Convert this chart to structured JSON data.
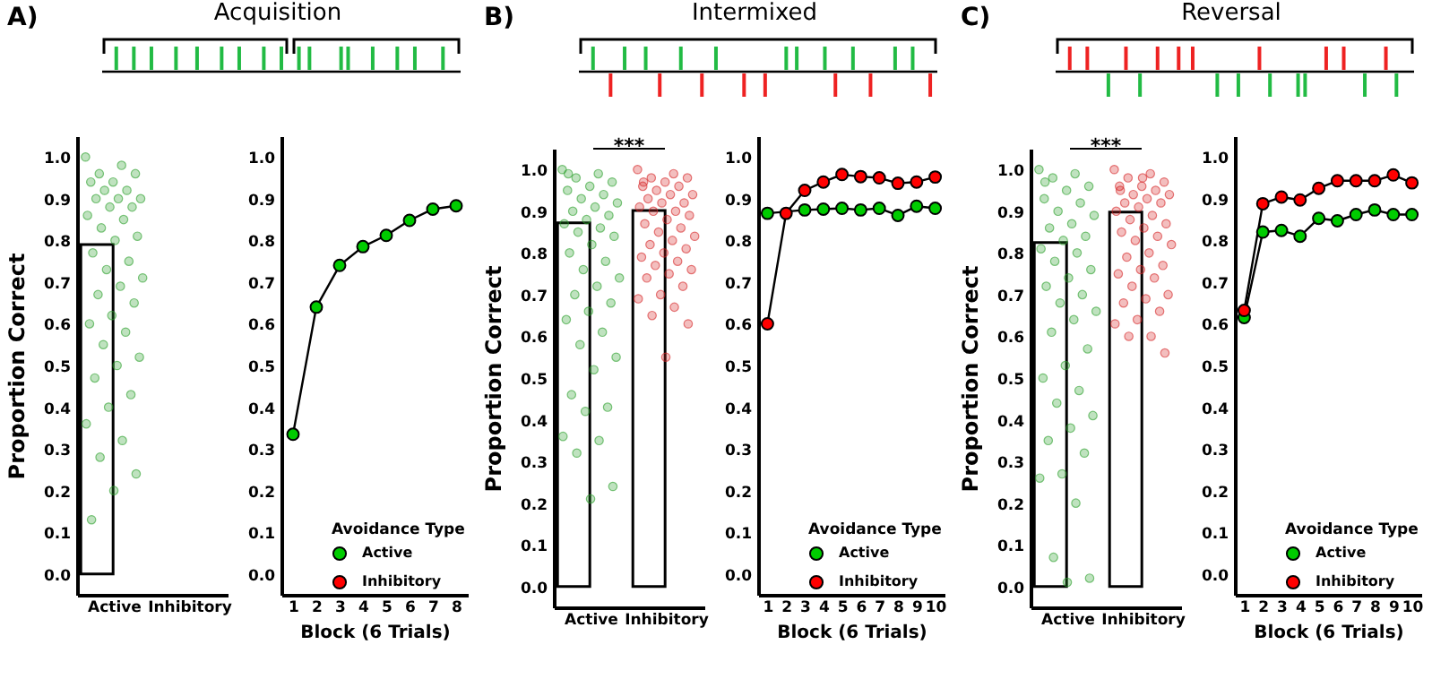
{
  "chart_data": [
    {
      "type": "bar",
      "title": "Acquisition",
      "annotations": [
        "A)"
      ],
      "ylabel": "Proportion Correct",
      "categories": [
        "Active",
        "Inhibitory"
      ],
      "ylim": [
        -0.05,
        1.05
      ],
      "yticks": [
        {
          "value": 0,
          "label": "0.0"
        },
        {
          "value": 0.1,
          "label": "0.1"
        },
        {
          "value": 0.2,
          "label": "0.2"
        },
        {
          "value": 0.3,
          "label": "0.3"
        },
        {
          "value": 0.4,
          "label": "0.4"
        },
        {
          "value": 0.5,
          "label": "0.5"
        },
        {
          "value": 0.6,
          "label": "0.6"
        },
        {
          "value": 0.7,
          "label": "0.7"
        },
        {
          "value": 0.8,
          "label": "0.8"
        },
        {
          "value": 0.9,
          "label": "0.9"
        },
        {
          "value": 1,
          "label": "1.0"
        }
      ],
      "series": [
        {
          "type": "bar",
          "color": "#ffffff",
          "values": [
            0.79,
            null
          ]
        },
        {
          "type": "scatter",
          "color": "#2ca02c",
          "x": [
            "Active",
            "Active",
            "Active",
            "Active",
            "Active",
            "Active",
            "Active",
            "Active",
            "Active",
            "Active",
            "Active",
            "Active",
            "Active",
            "Active",
            "Active",
            "Active",
            "Active",
            "Active",
            "Active",
            "Active",
            "Active",
            "Active",
            "Active",
            "Active",
            "Active",
            "Active",
            "Active",
            "Active",
            "Active",
            "Active",
            "Active",
            "Active",
            "Active",
            "Active",
            "Active",
            "Active",
            "Active",
            "Active",
            "Active",
            "Active"
          ],
          "values": [
            1,
            0.98,
            0.96,
            0.96,
            0.94,
            0.94,
            0.92,
            0.92,
            0.9,
            0.9,
            0.9,
            0.88,
            0.88,
            0.86,
            0.85,
            0.83,
            0.81,
            0.8,
            0.77,
            0.75,
            0.73,
            0.71,
            0.69,
            0.67,
            0.65,
            0.62,
            0.6,
            0.58,
            0.55,
            0.52,
            0.5,
            0.47,
            0.43,
            0.4,
            0.36,
            0.32,
            0.28,
            0.24,
            0.2,
            0.13
          ]
        }
      ]
    },
    {
      "type": "line",
      "xlabel": "Block (6 Trials)",
      "legend_title": "Avoidance Type",
      "legend": "bottom right",
      "marker": "circle",
      "x": [
        1,
        2,
        3,
        4,
        5,
        6,
        7,
        8
      ],
      "xlim": [
        0.5,
        8.5
      ],
      "xticks": [
        1,
        2,
        3,
        4,
        5,
        6,
        7,
        8
      ],
      "ylim": [
        -0.05,
        1.05
      ],
      "yticks": [
        {
          "value": 0,
          "label": "0.0"
        },
        {
          "value": 0.1,
          "label": "0.1"
        },
        {
          "value": 0.2,
          "label": "0.2"
        },
        {
          "value": 0.3,
          "label": "0.3"
        },
        {
          "value": 0.4,
          "label": "0.4"
        },
        {
          "value": 0.5,
          "label": "0.5"
        },
        {
          "value": 0.6,
          "label": "0.6"
        },
        {
          "value": 0.7,
          "label": "0.7"
        },
        {
          "value": 0.8,
          "label": "0.8"
        },
        {
          "value": 0.9,
          "label": "0.9"
        },
        {
          "value": 1,
          "label": "1.0"
        }
      ],
      "series": [
        {
          "name": "Active",
          "color": "#00cc00",
          "values": [
            0.335,
            0.64,
            0.74,
            0.785,
            0.812,
            0.848,
            0.875,
            0.883
          ],
          "errors": [
            0.01,
            0.012,
            0.012,
            0.01,
            0.01,
            0.008,
            0.006,
            0.005
          ]
        },
        {
          "name": "Inhibitory",
          "color": "#ff0000",
          "values": [
            null,
            null,
            null,
            null,
            null,
            null,
            null,
            null
          ]
        }
      ]
    },
    {
      "type": "bar",
      "title": "Intermixed",
      "annotations": [
        "B)",
        "***"
      ],
      "ylabel": "Proportion Correct",
      "categories": [
        "Active",
        "Inhibitory"
      ],
      "ylim": [
        -0.05,
        1.05
      ],
      "yticks": [
        {
          "value": 0,
          "label": "0.0"
        },
        {
          "value": 0.1,
          "label": "0.1"
        },
        {
          "value": 0.2,
          "label": "0.2"
        },
        {
          "value": 0.3,
          "label": "0.3"
        },
        {
          "value": 0.4,
          "label": "0.4"
        },
        {
          "value": 0.5,
          "label": "0.5"
        },
        {
          "value": 0.6,
          "label": "0.6"
        },
        {
          "value": 0.7,
          "label": "0.7"
        },
        {
          "value": 0.8,
          "label": "0.8"
        },
        {
          "value": 0.9,
          "label": "0.9"
        },
        {
          "value": 1,
          "label": "1.0"
        }
      ],
      "series": [
        {
          "type": "bar",
          "color": "#ffffff",
          "values": [
            0.872,
            0.902
          ]
        },
        {
          "type": "scatter",
          "color": "#2ca02c",
          "x": [
            "Active",
            "Active",
            "Active",
            "Active",
            "Active",
            "Active",
            "Active",
            "Active",
            "Active",
            "Active",
            "Active",
            "Active",
            "Active",
            "Active",
            "Active",
            "Active",
            "Active",
            "Active",
            "Active",
            "Active",
            "Active",
            "Active",
            "Active",
            "Active",
            "Active",
            "Active",
            "Active",
            "Active",
            "Active",
            "Active",
            "Active",
            "Active",
            "Active",
            "Active",
            "Active",
            "Active",
            "Active",
            "Active",
            "Active",
            "Active"
          ],
          "values": [
            1,
            0.99,
            0.98,
            0.97,
            0.96,
            0.95,
            0.94,
            0.93,
            0.92,
            0.91,
            0.9,
            0.89,
            0.88,
            0.87,
            0.86,
            0.85,
            0.84,
            0.82,
            0.8,
            0.78,
            0.76,
            0.74,
            0.72,
            0.7,
            0.68,
            0.66,
            0.64,
            0.61,
            0.58,
            0.55,
            0.52,
            0.46,
            0.43,
            0.42,
            0.36,
            0.35,
            0.32,
            0.24,
            0.21,
            0.99
          ]
        },
        {
          "type": "scatter",
          "color": "#d62728",
          "x": [
            "Inhibitory",
            "Inhibitory",
            "Inhibitory",
            "Inhibitory",
            "Inhibitory",
            "Inhibitory",
            "Inhibitory",
            "Inhibitory",
            "Inhibitory",
            "Inhibitory",
            "Inhibitory",
            "Inhibitory",
            "Inhibitory",
            "Inhibitory",
            "Inhibitory",
            "Inhibitory",
            "Inhibitory",
            "Inhibitory",
            "Inhibitory",
            "Inhibitory",
            "Inhibitory",
            "Inhibitory",
            "Inhibitory",
            "Inhibitory",
            "Inhibitory",
            "Inhibitory",
            "Inhibitory",
            "Inhibitory",
            "Inhibitory",
            "Inhibitory",
            "Inhibitory",
            "Inhibitory",
            "Inhibitory",
            "Inhibitory",
            "Inhibitory",
            "Inhibitory",
            "Inhibitory",
            "Inhibitory",
            "Inhibitory",
            "Inhibitory"
          ],
          "values": [
            1,
            0.99,
            0.98,
            0.98,
            0.97,
            0.96,
            0.96,
            0.95,
            0.94,
            0.94,
            0.93,
            0.92,
            0.92,
            0.91,
            0.9,
            0.9,
            0.89,
            0.88,
            0.87,
            0.86,
            0.85,
            0.84,
            0.83,
            0.82,
            0.81,
            0.8,
            0.79,
            0.78,
            0.77,
            0.76,
            0.75,
            0.74,
            0.72,
            0.7,
            0.69,
            0.67,
            0.65,
            0.63,
            0.55,
            0.97
          ]
        }
      ]
    },
    {
      "type": "line",
      "xlabel": "Block (6 Trials)",
      "legend_title": "Avoidance Type",
      "legend": "bottom right",
      "marker": "circle",
      "x": [
        1,
        2,
        3,
        4,
        5,
        6,
        7,
        8,
        9,
        10
      ],
      "xlim": [
        0.5,
        10.5
      ],
      "xticks": [
        1,
        2,
        3,
        4,
        5,
        6,
        7,
        8,
        9,
        10
      ],
      "ylim": [
        -0.05,
        1.05
      ],
      "yticks": [
        {
          "value": 0,
          "label": "0.0"
        },
        {
          "value": 0.1,
          "label": "0.1"
        },
        {
          "value": 0.2,
          "label": "0.2"
        },
        {
          "value": 0.3,
          "label": "0.3"
        },
        {
          "value": 0.4,
          "label": "0.4"
        },
        {
          "value": 0.5,
          "label": "0.5"
        },
        {
          "value": 0.6,
          "label": "0.6"
        },
        {
          "value": 0.7,
          "label": "0.7"
        },
        {
          "value": 0.8,
          "label": "0.8"
        },
        {
          "value": 0.9,
          "label": "0.9"
        },
        {
          "value": 1,
          "label": "1.0"
        }
      ],
      "series": [
        {
          "name": "Active",
          "color": "#00cc00",
          "values": [
            0.865,
            null,
            0.873,
            0.875,
            0.877,
            0.873,
            0.877,
            0.86,
            0.882,
            0.877
          ]
        },
        {
          "name": "Inhibitory",
          "color": "#ff0000",
          "values": [
            0.6,
            0.865,
            0.92,
            0.94,
            0.958,
            0.953,
            0.95,
            0.937,
            0.94,
            0.952
          ]
        }
      ]
    },
    {
      "type": "bar",
      "title": "Reversal",
      "annotations": [
        "C)",
        "***"
      ],
      "ylabel": "Proportion Correct",
      "categories": [
        "Active",
        "Inhibitory"
      ],
      "ylim": [
        -0.05,
        1.05
      ],
      "yticks": [
        {
          "value": 0,
          "label": "0.0"
        },
        {
          "value": 0.1,
          "label": "0.1"
        },
        {
          "value": 0.2,
          "label": "0.2"
        },
        {
          "value": 0.3,
          "label": "0.3"
        },
        {
          "value": 0.4,
          "label": "0.4"
        },
        {
          "value": 0.5,
          "label": "0.5"
        },
        {
          "value": 0.6,
          "label": "0.6"
        },
        {
          "value": 0.7,
          "label": "0.7"
        },
        {
          "value": 0.8,
          "label": "0.8"
        },
        {
          "value": 0.9,
          "label": "0.9"
        },
        {
          "value": 1,
          "label": "1.0"
        }
      ],
      "series": [
        {
          "type": "bar",
          "color": "#ffffff",
          "values": [
            0.825,
            0.898
          ]
        },
        {
          "type": "scatter",
          "color": "#2ca02c",
          "x": [
            "Active",
            "Active",
            "Active",
            "Active",
            "Active",
            "Active",
            "Active",
            "Active",
            "Active",
            "Active",
            "Active",
            "Active",
            "Active",
            "Active",
            "Active",
            "Active",
            "Active",
            "Active",
            "Active",
            "Active",
            "Active",
            "Active",
            "Active",
            "Active",
            "Active",
            "Active",
            "Active",
            "Active",
            "Active",
            "Active",
            "Active",
            "Active",
            "Active",
            "Active",
            "Active",
            "Active",
            "Active",
            "Active",
            "Active",
            "Active"
          ],
          "values": [
            1,
            0.99,
            0.98,
            0.96,
            0.95,
            0.93,
            0.92,
            0.9,
            0.89,
            0.87,
            0.86,
            0.84,
            0.83,
            0.81,
            0.8,
            0.78,
            0.76,
            0.74,
            0.72,
            0.7,
            0.68,
            0.66,
            0.64,
            0.61,
            0.57,
            0.53,
            0.5,
            0.47,
            0.44,
            0.41,
            0.38,
            0.35,
            0.32,
            0.27,
            0.26,
            0.2,
            0.07,
            0.02,
            0.01,
            0.97
          ]
        },
        {
          "type": "scatter",
          "color": "#d62728",
          "x": [
            "Inhibitory",
            "Inhibitory",
            "Inhibitory",
            "Inhibitory",
            "Inhibitory",
            "Inhibitory",
            "Inhibitory",
            "Inhibitory",
            "Inhibitory",
            "Inhibitory",
            "Inhibitory",
            "Inhibitory",
            "Inhibitory",
            "Inhibitory",
            "Inhibitory",
            "Inhibitory",
            "Inhibitory",
            "Inhibitory",
            "Inhibitory",
            "Inhibitory",
            "Inhibitory",
            "Inhibitory",
            "Inhibitory",
            "Inhibitory",
            "Inhibitory",
            "Inhibitory",
            "Inhibitory",
            "Inhibitory",
            "Inhibitory",
            "Inhibitory",
            "Inhibitory",
            "Inhibitory",
            "Inhibitory",
            "Inhibitory",
            "Inhibitory",
            "Inhibitory",
            "Inhibitory",
            "Inhibitory",
            "Inhibitory",
            "Inhibitory"
          ],
          "values": [
            1,
            0.99,
            0.98,
            0.97,
            0.96,
            0.96,
            0.95,
            0.94,
            0.94,
            0.93,
            0.92,
            0.92,
            0.91,
            0.9,
            0.89,
            0.88,
            0.87,
            0.86,
            0.85,
            0.84,
            0.83,
            0.82,
            0.8,
            0.79,
            0.77,
            0.76,
            0.75,
            0.74,
            0.72,
            0.7,
            0.69,
            0.68,
            0.66,
            0.64,
            0.63,
            0.6,
            0.6,
            0.56,
            0.98,
            0.95
          ]
        }
      ]
    },
    {
      "type": "line",
      "xlabel": "Block (6 Trials)",
      "legend_title": "Avoidance Type",
      "legend": "bottom right",
      "marker": "circle",
      "x": [
        1,
        2,
        3,
        4,
        5,
        6,
        7,
        8,
        9,
        10
      ],
      "xlim": [
        0.5,
        10.5
      ],
      "xticks": [
        1,
        2,
        3,
        4,
        5,
        6,
        7,
        8,
        9,
        10
      ],
      "ylim": [
        -0.05,
        1.05
      ],
      "yticks": [
        {
          "value": 0,
          "label": "0.0"
        },
        {
          "value": 0.1,
          "label": "0.1"
        },
        {
          "value": 0.2,
          "label": "0.2"
        },
        {
          "value": 0.3,
          "label": "0.3"
        },
        {
          "value": 0.4,
          "label": "0.4"
        },
        {
          "value": 0.5,
          "label": "0.5"
        },
        {
          "value": 0.6,
          "label": "0.6"
        },
        {
          "value": 0.7,
          "label": "0.7"
        },
        {
          "value": 0.8,
          "label": "0.8"
        },
        {
          "value": 0.9,
          "label": "0.9"
        },
        {
          "value": 1,
          "label": "1.0"
        }
      ],
      "series": [
        {
          "name": "Active",
          "color": "#00cc00",
          "values": [
            0.615,
            0.82,
            0.824,
            0.81,
            0.853,
            0.847,
            0.862,
            0.873,
            0.862,
            0.862
          ]
        },
        {
          "name": "Inhibitory",
          "color": "#ff0000",
          "values": [
            0.632,
            0.888,
            0.904,
            0.897,
            0.925,
            0.943,
            0.943,
            0.943,
            0.957,
            0.938
          ]
        }
      ]
    }
  ]
}
